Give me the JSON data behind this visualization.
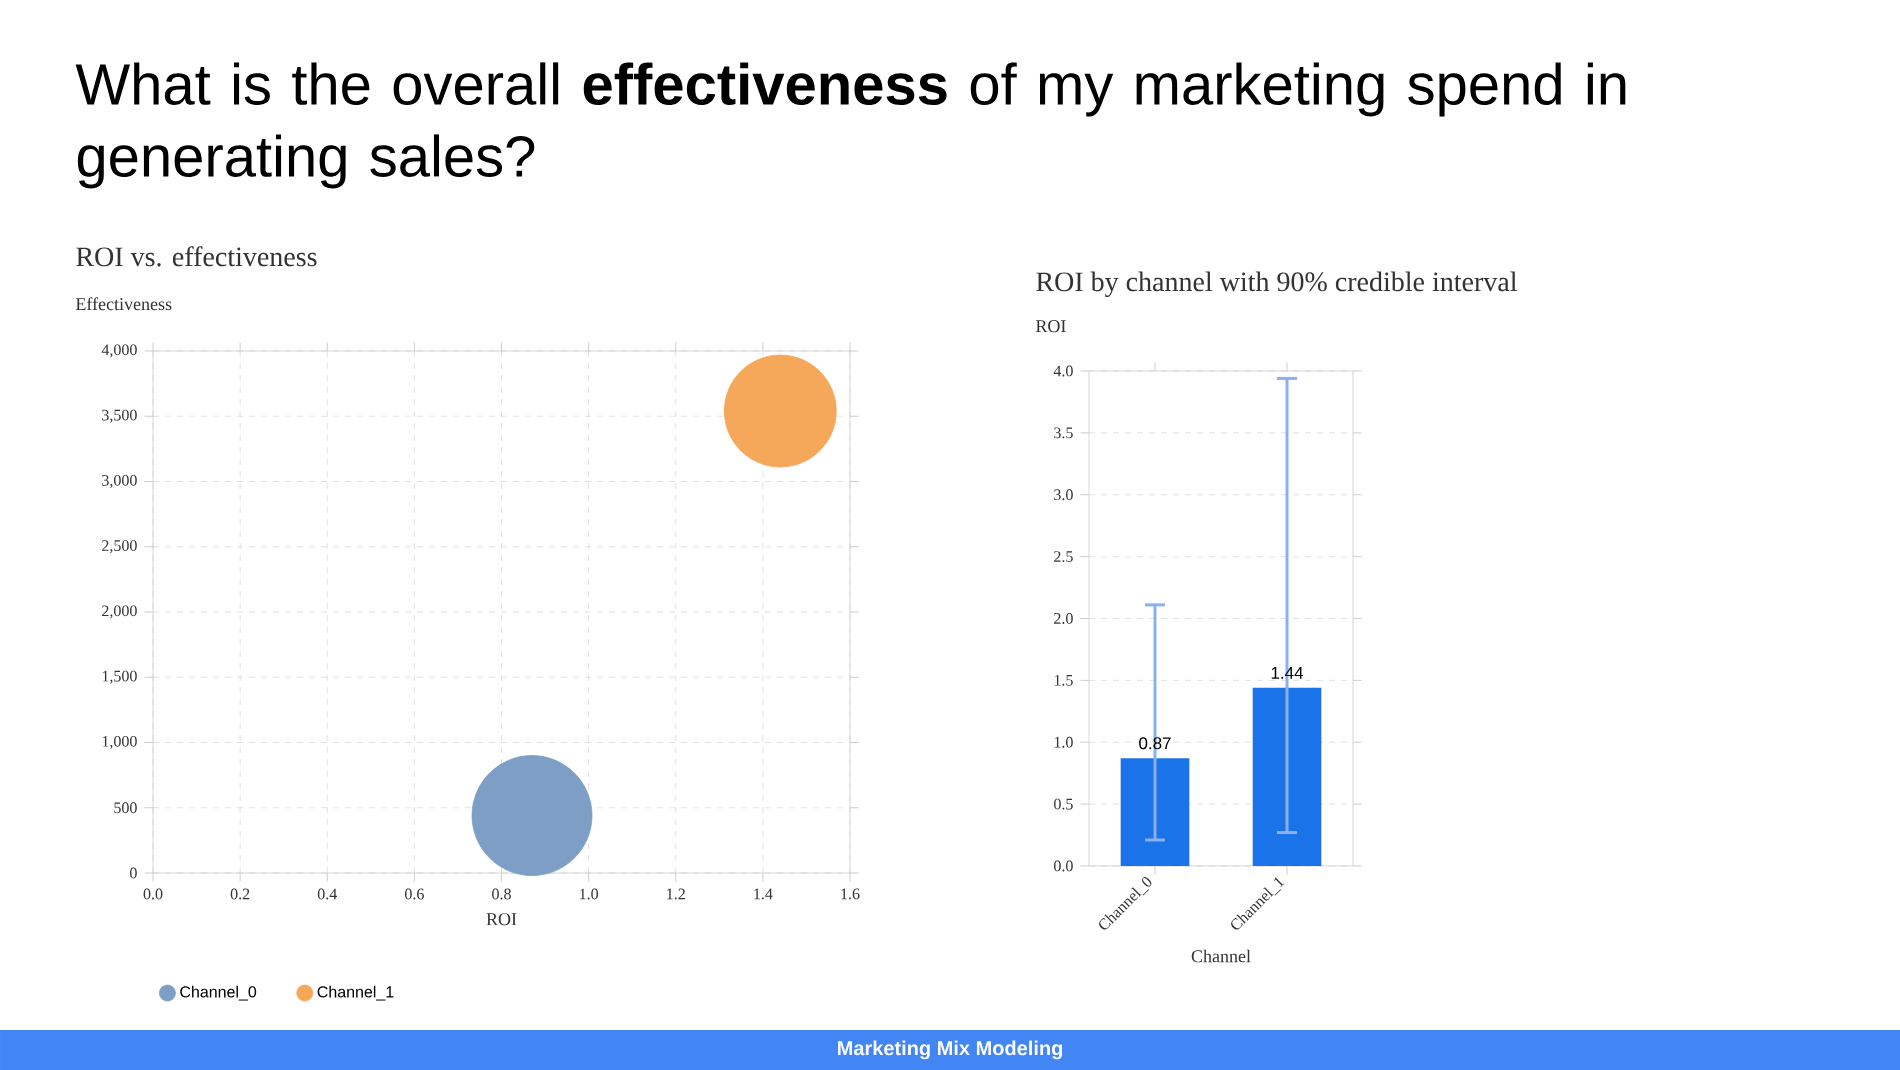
{
  "chart_data": [
    {
      "type": "other",
      "title": "What is the overall **effectiveness** of my marketing spend in generating sales?",
      "annotations": [
        "Marketing Mix Modeling"
      ]
    },
    {
      "type": "bubble",
      "title": "ROI vs. effectiveness",
      "xlabel": "ROI",
      "ylabel": "Effectiveness",
      "xlim": [
        0,
        1.6
      ],
      "xticks": [
        {
          "value": 0,
          "label": "0.0"
        },
        0.2,
        0.4,
        0.6,
        0.8,
        {
          "value": 1,
          "label": "1.0"
        },
        1.2,
        1.4,
        1.6
      ],
      "ylim": [
        0,
        4000
      ],
      "yticks": [
        0,
        500,
        {
          "value": 1000,
          "label": "1,000"
        },
        {
          "value": 1500,
          "label": "1,500"
        },
        {
          "value": 2000,
          "label": "2,000"
        },
        {
          "value": 2500,
          "label": "2,500"
        },
        {
          "value": 3000,
          "label": "3,000"
        },
        {
          "value": 3500,
          "label": "3,500"
        },
        {
          "value": 4000,
          "label": "4,000"
        }
      ],
      "grid": true,
      "legend": "bottom left",
      "series": [
        {
          "name": "Channel_0",
          "color": "#7d9fc6",
          "x": [
            0.87
          ],
          "values": [
            440
          ],
          "sizes": [
            1
          ]
        },
        {
          "name": "Channel_1",
          "color": "#f5a75a",
          "x": [
            1.44
          ],
          "values": [
            3540
          ],
          "sizes": [
            0.87
          ]
        }
      ]
    },
    {
      "type": "bar",
      "title": "ROI by channel with 90% credible interval",
      "xlabel": "Channel",
      "ylabel": "ROI",
      "categories": [
        "Channel_0",
        "Channel_1"
      ],
      "values": [
        0.87,
        1.44
      ],
      "errors": [
        [
          0.21,
          2.11
        ],
        [
          0.27,
          3.94
        ]
      ],
      "color": "#1a73e8",
      "ylim": [
        0,
        4
      ],
      "yticks": [
        {
          "value": 0,
          "label": "0.0"
        },
        0.5,
        {
          "value": 1,
          "label": "1.0"
        },
        1.5,
        {
          "value": 2,
          "label": "2.0"
        },
        2.5,
        {
          "value": 3,
          "label": "3.0"
        },
        3.5,
        {
          "value": 4,
          "label": "4.0"
        }
      ],
      "grid": "y",
      "data_labels": true
    }
  ]
}
